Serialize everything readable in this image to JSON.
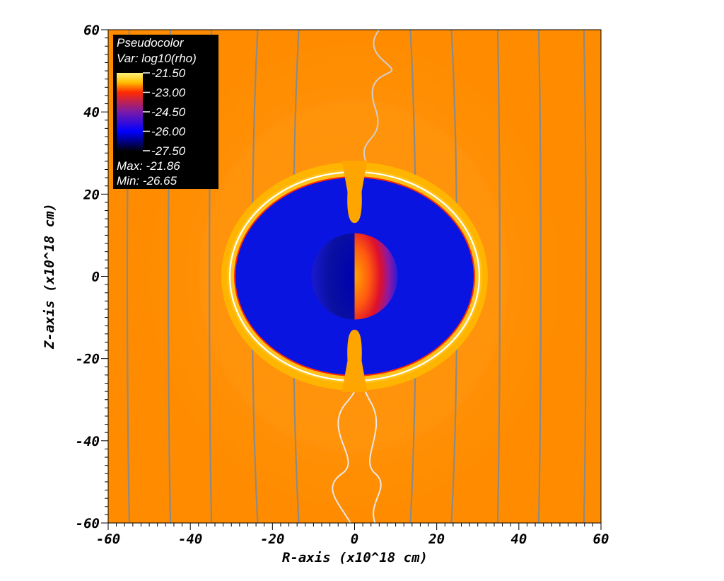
{
  "chart_data": {
    "type": "heatmap",
    "plot": "Pseudocolor",
    "variable": "Var: log10(rho)",
    "xlabel": "R-axis (x10^18 cm)",
    "ylabel": "Z-axis (x10^18 cm)",
    "xlim": [
      -60,
      60
    ],
    "ylim": [
      -60,
      60
    ],
    "x_ticks": [
      "-60",
      "-40",
      "-20",
      "0",
      "20",
      "40",
      "60"
    ],
    "y_ticks": [
      "60",
      "40",
      "20",
      "0",
      "-20",
      "-40",
      "-60"
    ],
    "colorbar": {
      "labels": [
        "-21.50",
        "-23.00",
        "-24.50",
        "-26.00",
        "-27.50"
      ],
      "values": [
        -21.5,
        -23.0,
        -24.5,
        -26.0,
        -27.5
      ],
      "colors": [
        "#fff27a",
        "#ff2a00",
        "#7a1aa8",
        "#0000ff",
        "#000010"
      ]
    },
    "max_label": "Max: -21.86",
    "min_label": "Min: -26.65",
    "max": -21.86,
    "min": -26.65,
    "regions": {
      "ambient_log10_rho": -22.3,
      "cavity_log10_rho": -26.0,
      "shell_log10_rho": -21.9,
      "cavity_radius_R": 29.0,
      "cavity_half_height_Z": 24.0,
      "core_radius": 10.5
    },
    "field_lines_R": [
      -55,
      -45,
      -35,
      -24,
      -14,
      14,
      24,
      35,
      45,
      56
    ],
    "colors": {
      "ambient": "#ff8c00",
      "ambient_light": "#ff9a14",
      "cavity": "#0a14e0",
      "shell": "#ffb800",
      "shell_edge": "#ff2a00",
      "legend_bg": "#000000"
    }
  }
}
